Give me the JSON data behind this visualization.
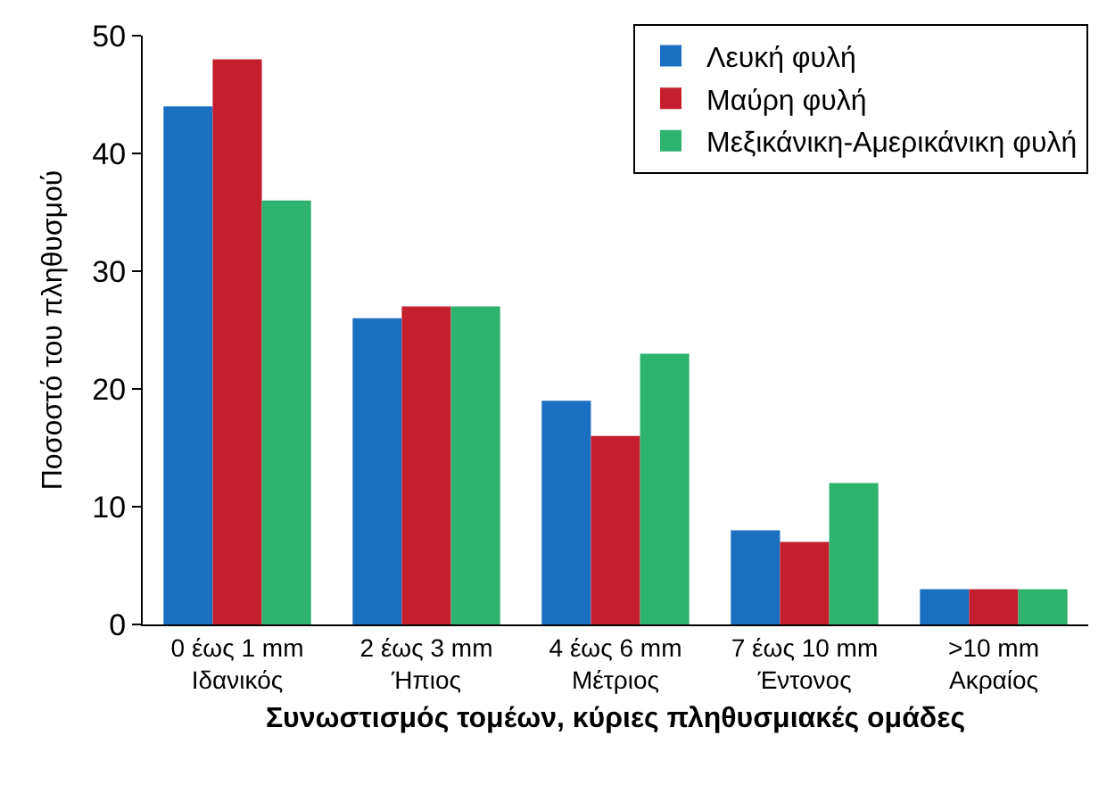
{
  "chart_data": {
    "type": "bar",
    "xlabel": "Συνωστισμός τομέων, κύριες πληθυσμιακές ομάδες",
    "ylabel": "Ποσοστό του πληθυσμού",
    "categories": [
      "0 έως 1 mm\nΙδανικός",
      "2 έως 3 mm\nΉπιος",
      "4 έως 6 mm\nΜέτριος",
      "7 έως 10 mm\nΈντονος",
      ">10 mm\nΑκραίος"
    ],
    "series": [
      {
        "name": "Λευκή φυλή",
        "color": "#1a6fc0",
        "values": [
          44,
          26,
          19,
          8,
          3
        ]
      },
      {
        "name": "Μαύρη φυλή",
        "color": "#c41e2f",
        "values": [
          48,
          27,
          16,
          7,
          3
        ]
      },
      {
        "name": "Μεξικάνικη-Αμερικάνικη φυλή",
        "color": "#2db36d",
        "values": [
          36,
          27,
          23,
          12,
          3
        ]
      }
    ],
    "ylim": [
      0,
      50
    ],
    "yticks": [
      0,
      10,
      20,
      30,
      40,
      50
    ],
    "grid": false,
    "legend": "top right"
  }
}
